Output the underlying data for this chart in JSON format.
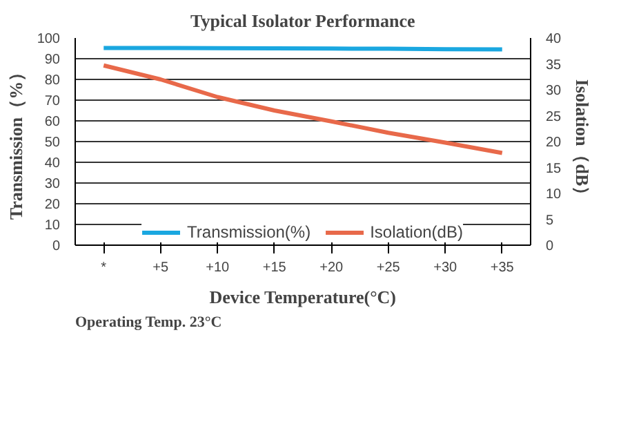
{
  "chart_data": {
    "type": "line",
    "title": "Typical Isolator Performance",
    "xlabel": "Device Temperature(°C)",
    "ylabel": "Transmission（%）",
    "y2label": "Isolation（dB）",
    "categories": [
      "*",
      "+5",
      "+10",
      "+15",
      "+20",
      "+25",
      "+30",
      "+35"
    ],
    "series": [
      {
        "name": "Transmission(%)",
        "color": "#1aa7e0",
        "values": [
          95.2,
          95.2,
          95.1,
          95.0,
          94.9,
          94.8,
          94.6,
          94.5
        ]
      },
      {
        "name": "Isolation(dB)",
        "color": "#e8694a",
        "axis": "y2",
        "values": [
          34.7,
          32.0,
          28.6,
          26.0,
          23.9,
          21.7,
          19.8,
          17.8
        ]
      }
    ],
    "ylim": [
      0,
      100
    ],
    "yticks": [
      0,
      10,
      20,
      30,
      40,
      50,
      60,
      70,
      80,
      90,
      100
    ],
    "y2lim": [
      0,
      40
    ],
    "y2ticks": [
      0,
      5,
      10,
      15,
      20,
      25,
      30,
      35,
      40
    ],
    "grid": "y",
    "legend": "bottom",
    "annotations": [
      "Operating Temp. 23°C"
    ]
  }
}
